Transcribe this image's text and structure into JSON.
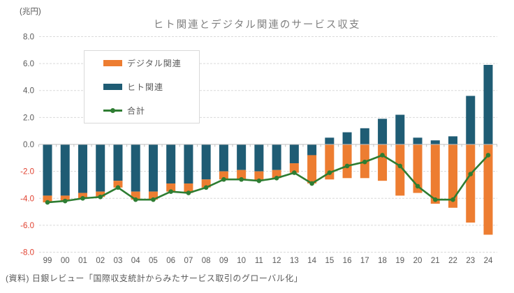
{
  "unit_label": "(兆円)",
  "title": "ヒト関連とデジタル関連のサービス収支",
  "source": "(資料) 日銀レビュー「国際収支統計からみたサービス取引のグローバル化」",
  "colors": {
    "digital": "#ed7d31",
    "human": "#1f5c74",
    "total": "#2e7d32",
    "grid": "#d9d9d9",
    "zero_axis": "#bfbfbf",
    "tick_label": "#595959",
    "negative_tick_label": "#e0402f",
    "title_text": "#7f7f7f"
  },
  "legend": [
    {
      "label": "デジタル関連",
      "type": "bar",
      "color": "#ed7d31"
    },
    {
      "label": "ヒト関連",
      "type": "bar",
      "color": "#1f5c74"
    },
    {
      "label": "合計",
      "type": "line",
      "color": "#2e7d32"
    }
  ],
  "chart_data": {
    "type": "bar",
    "subtype": "stacked-bars-with-line-overlay",
    "title": "ヒト関連とデジタル関連のサービス収支",
    "ylabel": "(兆円)",
    "xlabel": "",
    "ylim": [
      -8.0,
      8.0
    ],
    "ytick_step": 2.0,
    "grid": true,
    "legend_position": "upper-left-inside",
    "categories": [
      "99",
      "00",
      "01",
      "02",
      "03",
      "04",
      "05",
      "06",
      "07",
      "08",
      "09",
      "10",
      "11",
      "12",
      "13",
      "14",
      "15",
      "16",
      "17",
      "18",
      "19",
      "20",
      "21",
      "22",
      "23",
      "24"
    ],
    "series": [
      {
        "name": "ヒト関連",
        "type": "bar",
        "color": "#1f5c74",
        "values": [
          -3.8,
          -3.8,
          -3.6,
          -3.5,
          -2.7,
          -3.5,
          -3.5,
          -2.9,
          -2.9,
          -2.6,
          -2.0,
          -1.9,
          -2.0,
          -1.9,
          -1.4,
          -0.8,
          0.5,
          0.9,
          1.2,
          1.9,
          2.2,
          0.5,
          0.3,
          0.6,
          3.6,
          5.9
        ]
      },
      {
        "name": "デジタル関連",
        "type": "bar",
        "color": "#ed7d31",
        "values": [
          -0.5,
          -0.4,
          -0.4,
          -0.4,
          -0.5,
          -0.6,
          -0.6,
          -0.6,
          -0.7,
          -0.6,
          -0.6,
          -0.7,
          -0.7,
          -0.6,
          -0.7,
          -2.1,
          -2.6,
          -2.5,
          -2.5,
          -2.7,
          -3.8,
          -3.6,
          -4.4,
          -4.7,
          -5.8,
          -6.7
        ]
      },
      {
        "name": "合計",
        "type": "line",
        "color": "#2e7d32",
        "values": [
          -4.3,
          -4.2,
          -4.0,
          -3.9,
          -3.2,
          -4.1,
          -4.1,
          -3.5,
          -3.6,
          -3.2,
          -2.6,
          -2.6,
          -2.7,
          -2.5,
          -2.1,
          -2.9,
          -2.1,
          -1.6,
          -1.3,
          -0.8,
          -1.6,
          -3.1,
          -4.1,
          -4.1,
          -2.2,
          -0.8
        ]
      }
    ]
  }
}
